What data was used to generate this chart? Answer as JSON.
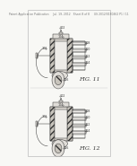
{
  "background_color": "#f8f8f5",
  "header_text": "Patent Application Publication     Jul. 19, 2012   Sheet 8 of 8     US 2012/0180462 P1 / 11",
  "header_fontsize": 2.2,
  "fig1_label": "FIG. 11",
  "fig2_label": "FIG. 12",
  "fig_label_fontsize": 4.5,
  "line_color": "#333333",
  "annotation_color": "#333333",
  "annotation_fontsize": 3.2,
  "hatch_line_color": "#555555",
  "component_fill": "#e0ddd8",
  "hatch_fill": "#c8c4bc",
  "outer_fill": "#dedad4",
  "bg_fill": "#eeece8"
}
